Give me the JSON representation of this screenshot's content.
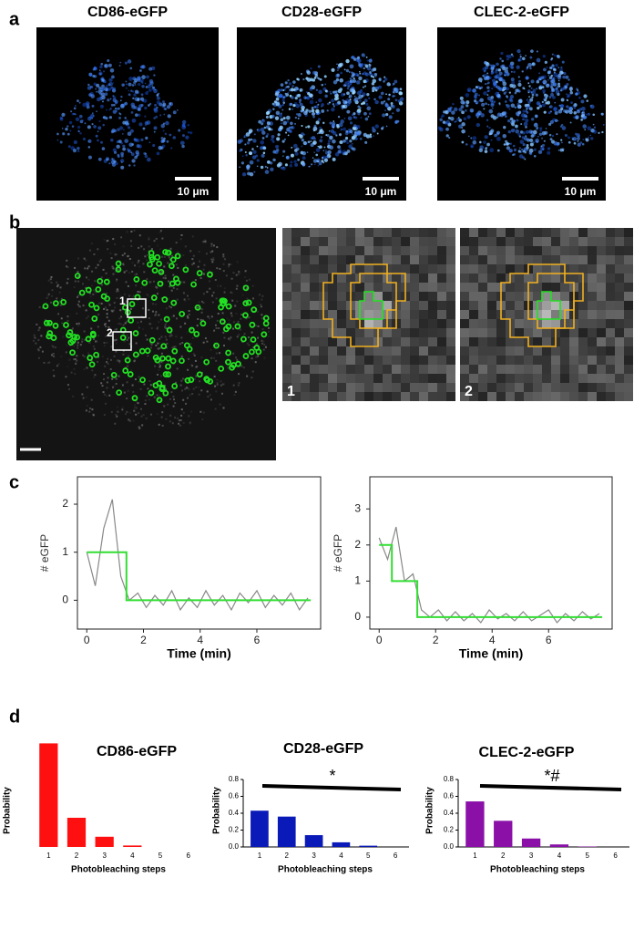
{
  "panel_labels": [
    "a",
    "b",
    "c",
    "d"
  ],
  "panel_a": {
    "images": [
      {
        "title": "CD86-eGFP",
        "scale_bar": "10 μm"
      },
      {
        "title": "CD28-eGFP",
        "scale_bar": "10 μm"
      },
      {
        "title": "CLEC-2-eGFP",
        "scale_bar": "10 μm"
      }
    ]
  },
  "panel_b": {
    "roi_labels": [
      "1",
      "2"
    ],
    "zoom_labels": [
      "1",
      "2"
    ]
  },
  "chart_data": [
    {
      "type": "line",
      "xlabel": "Time (min)",
      "ylabel": "# eGFP",
      "xlim": [
        -0.33,
        8.25
      ],
      "ylim": [
        -0.6,
        2.57
      ],
      "xticks": [
        0,
        2,
        4,
        6
      ],
      "yticks": [
        0,
        1,
        2
      ],
      "series": [
        {
          "color": "#888888",
          "x": [
            0,
            0.3,
            0.6,
            0.9,
            1.2,
            1.5,
            1.8,
            2.1,
            2.4,
            2.7,
            3.0,
            3.3,
            3.6,
            3.9,
            4.2,
            4.5,
            4.8,
            5.1,
            5.4,
            5.7,
            6.0,
            6.3,
            6.6,
            6.9,
            7.2,
            7.5,
            7.8
          ],
          "values": [
            1.0,
            0.3,
            1.5,
            2.1,
            0.5,
            0.0,
            0.15,
            -0.15,
            0.1,
            -0.1,
            0.2,
            -0.2,
            0.05,
            -0.15,
            0.2,
            -0.1,
            0.1,
            -0.2,
            0.15,
            -0.05,
            0.2,
            -0.15,
            0.1,
            -0.1,
            0.15,
            -0.2,
            0.05
          ]
        },
        {
          "color": "#33dd33",
          "x": [
            0,
            1.4,
            1.4,
            7.9
          ],
          "values": [
            1,
            1,
            0,
            0
          ]
        }
      ]
    },
    {
      "type": "line",
      "xlabel": "Time (min)",
      "ylabel": "# eGFP",
      "xlim": [
        -0.33,
        8.25
      ],
      "ylim": [
        -0.33,
        3.89
      ],
      "xticks": [
        0,
        2,
        4,
        6
      ],
      "yticks": [
        0,
        1,
        2,
        3
      ],
      "series": [
        {
          "color": "#888888",
          "x": [
            0,
            0.3,
            0.6,
            0.9,
            1.2,
            1.5,
            1.8,
            2.1,
            2.4,
            2.7,
            3.0,
            3.3,
            3.6,
            3.9,
            4.2,
            4.5,
            4.8,
            5.1,
            5.4,
            5.7,
            6.0,
            6.3,
            6.6,
            6.9,
            7.2,
            7.5,
            7.8
          ],
          "values": [
            2.2,
            1.6,
            2.5,
            1.0,
            1.2,
            0.2,
            0.0,
            0.2,
            -0.1,
            0.15,
            -0.1,
            0.1,
            -0.15,
            0.2,
            -0.05,
            0.1,
            -0.1,
            0.15,
            -0.1,
            0.05,
            0.2,
            -0.15,
            0.1,
            -0.1,
            0.15,
            -0.05,
            0.1
          ]
        },
        {
          "color": "#33dd33",
          "x": [
            0,
            0.45,
            0.45,
            1.35,
            1.35,
            7.9
          ],
          "values": [
            2,
            2,
            1,
            1,
            0,
            0
          ]
        }
      ]
    },
    {
      "type": "bar",
      "title": "CD86-eGFP",
      "xlabel": "Photobleaching steps",
      "ylabel": "Probability",
      "categories": [
        "1",
        "2",
        "3",
        "4",
        "5",
        "6"
      ],
      "values": [
        0.71,
        0.2,
        0.07,
        0.01,
        0,
        0
      ],
      "color": "#ff1010",
      "ylim": [
        0,
        0.8
      ]
    },
    {
      "type": "bar",
      "title": "CD28-eGFP",
      "xlabel": "Photobleaching steps",
      "ylabel": "Probability",
      "categories": [
        "1",
        "2",
        "3",
        "4",
        "5",
        "6"
      ],
      "values": [
        0.43,
        0.36,
        0.14,
        0.055,
        0.015,
        0
      ],
      "color": "#0a1ab8",
      "ylim": [
        0,
        0.8
      ],
      "yticks": [
        {
          "value": 0,
          "label": "0.0"
        },
        0.2,
        0.4,
        0.6,
        0.8
      ],
      "annotation": "*"
    },
    {
      "type": "bar",
      "title": "CLEC-2-eGFP",
      "xlabel": "Photobleaching steps",
      "ylabel": "Probability",
      "categories": [
        "1",
        "2",
        "3",
        "4",
        "5",
        "6"
      ],
      "values": [
        0.54,
        0.31,
        0.1,
        0.03,
        0.005,
        0
      ],
      "color": "#8a10a8",
      "ylim": [
        0,
        0.8
      ],
      "yticks": [
        {
          "value": 0,
          "label": "0.0"
        },
        0.2,
        0.4,
        0.6,
        0.8
      ],
      "annotation": "*#"
    }
  ]
}
